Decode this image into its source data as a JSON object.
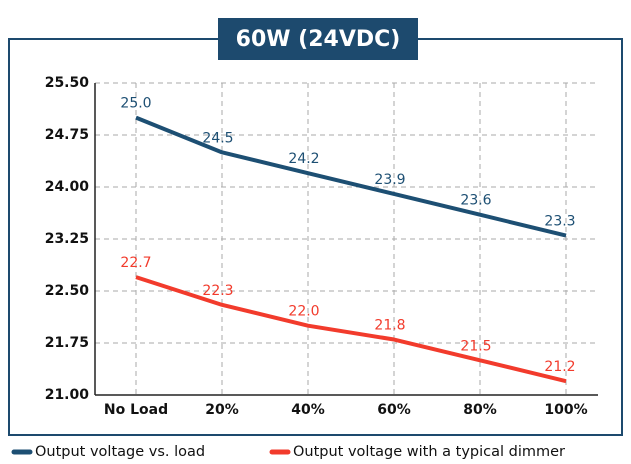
{
  "chart_data": {
    "type": "line",
    "title": "60W (24VDC)",
    "categories": [
      "No Load",
      "20%",
      "40%",
      "60%",
      "80%",
      "100%"
    ],
    "series": [
      {
        "name": "Output voltage vs. load",
        "color": "#1d4f73",
        "values": [
          25.0,
          24.5,
          24.2,
          23.9,
          23.6,
          23.3
        ],
        "value_labels": [
          "25.0",
          "24.5",
          "24.2",
          "23.9",
          "23.6",
          "23.3"
        ]
      },
      {
        "name": "Output voltage with a typical dimmer",
        "color": "#f23b2c",
        "values": [
          22.7,
          22.3,
          22.0,
          21.8,
          21.5,
          21.2
        ],
        "value_labels": [
          "22.7",
          "22.3",
          "22.0",
          "21.8",
          "21.5",
          "21.2"
        ]
      }
    ],
    "ylim": [
      21.0,
      25.5
    ],
    "yticks": [
      {
        "value": 21.0,
        "label": "21.00"
      },
      {
        "value": 21.75,
        "label": "21.75"
      },
      {
        "value": 22.5,
        "label": "22.50"
      },
      {
        "value": 23.25,
        "label": "23.25"
      },
      {
        "value": 24.0,
        "label": "24.00"
      },
      {
        "value": 24.75,
        "label": "24.75"
      },
      {
        "value": 25.5,
        "label": "25.50"
      }
    ],
    "grid": true
  }
}
